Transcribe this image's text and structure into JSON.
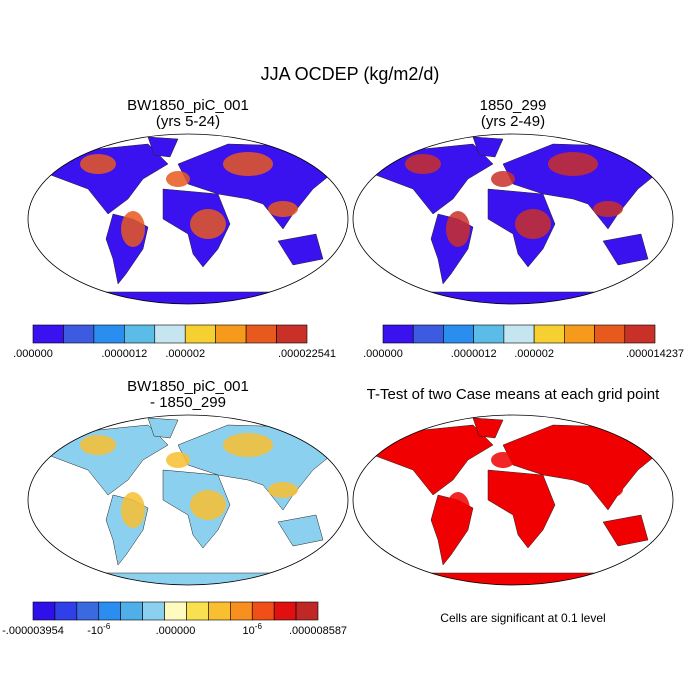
{
  "title": "JJA OCDEP (kg/m2/d)",
  "panels": [
    {
      "title": [
        "BW1850_piC_001",
        "(yrs 5-24)"
      ],
      "colorbar": {
        "colors": [
          "#3a12f0",
          "#3d5be0",
          "#2a8ef0",
          "#5cbce8",
          "#c5e6f0",
          "#f5d030",
          "#f59a1a",
          "#e8591e",
          "#c93028"
        ],
        "labels": [
          ".000000",
          ".0000012",
          ".000002",
          ".000022541"
        ]
      }
    },
    {
      "title": [
        "1850_299",
        "(yrs 2-49)"
      ],
      "colorbar": {
        "colors": [
          "#3a12f0",
          "#3d5be0",
          "#2a8ef0",
          "#5cbce8",
          "#c5e6f0",
          "#f5d030",
          "#f59a1a",
          "#e8591e",
          "#c93028"
        ],
        "labels": [
          ".000000",
          ".0000012",
          ".000002",
          ".000014237"
        ]
      }
    },
    {
      "title": [
        "BW1850_piC_001",
        "- 1850_299"
      ],
      "colorbar": {
        "colors": [
          "#3010e8",
          "#3040e8",
          "#3a6ae0",
          "#2a8ef0",
          "#50aee8",
          "#8cd0f0",
          "#fffbc0",
          "#f8e050",
          "#f8c030",
          "#f89020",
          "#f05018",
          "#e01010",
          "#c02828"
        ],
        "labels": [
          "-.000003954",
          {
            "base": "-10",
            "exp": "-6"
          },
          ".000000",
          {
            "base": "10",
            "exp": "-6"
          },
          ".000008587"
        ]
      }
    },
    {
      "title": [
        "T-Test of two Case means at each grid point"
      ],
      "note": "Cells are significant at 0.1 level"
    }
  ]
}
